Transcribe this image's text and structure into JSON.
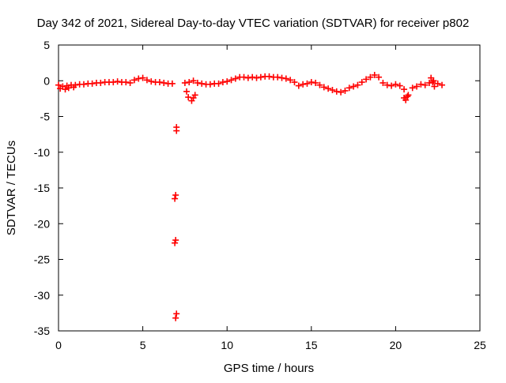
{
  "chart_data": {
    "type": "scatter",
    "title": "Day 342 of 2021, Sidereal Day-to-day VTEC variation (SDTVAR) for receiver p802",
    "xlabel": "GPS time / hours",
    "ylabel": "SDTVAR / TECUs",
    "xlim": [
      0,
      25
    ],
    "ylim": [
      -35,
      5
    ],
    "xticks": [
      0,
      5,
      10,
      15,
      20,
      25
    ],
    "yticks": [
      5,
      0,
      -5,
      -10,
      -15,
      -20,
      -25,
      -30,
      -35
    ],
    "grid": false,
    "legend": "none",
    "marker": "plus",
    "color": "#ff0000",
    "series": [
      {
        "name": "SDTVAR",
        "x": [
          0.0,
          0.25,
          0.5,
          0.75,
          1.0,
          1.25,
          1.5,
          1.75,
          2.0,
          2.25,
          2.5,
          2.75,
          3.0,
          3.25,
          3.5,
          3.75,
          4.0,
          4.25,
          4.5,
          4.75,
          5.0,
          5.25,
          5.5,
          5.75,
          6.0,
          6.25,
          6.5,
          6.75,
          7.5,
          7.75,
          8.0,
          8.25,
          8.5,
          8.75,
          9.0,
          9.25,
          9.5,
          9.75,
          10.0,
          10.25,
          10.5,
          10.75,
          11.0,
          11.25,
          11.5,
          11.75,
          12.0,
          12.25,
          12.5,
          12.75,
          13.0,
          13.25,
          13.5,
          13.75,
          14.0,
          14.25,
          14.5,
          14.75,
          15.0,
          15.25,
          15.5,
          15.75,
          16.0,
          16.25,
          16.5,
          16.75,
          17.0,
          17.25,
          17.5,
          17.75,
          18.0,
          18.25,
          18.5,
          18.75,
          19.0,
          19.25,
          19.5,
          19.75,
          20.0,
          20.25,
          20.5,
          20.75,
          21.0,
          21.25,
          21.5,
          21.75,
          22.0,
          22.25,
          22.5,
          22.75,
          0.1,
          0.4,
          0.6,
          0.9,
          7.0,
          7.0,
          6.95,
          6.9,
          6.95,
          6.9,
          7.0,
          6.95,
          7.6,
          7.7,
          7.9,
          8.0,
          8.1,
          20.5,
          20.6,
          20.7,
          22.1,
          22.2,
          22.3
        ],
        "y": [
          -0.6,
          -0.8,
          -0.7,
          -0.6,
          -0.6,
          -0.5,
          -0.5,
          -0.4,
          -0.4,
          -0.3,
          -0.3,
          -0.2,
          -0.2,
          -0.2,
          -0.1,
          -0.2,
          -0.2,
          -0.3,
          0.1,
          0.3,
          0.4,
          0.1,
          -0.1,
          -0.2,
          -0.2,
          -0.3,
          -0.4,
          -0.4,
          -0.3,
          -0.2,
          0.0,
          -0.3,
          -0.4,
          -0.5,
          -0.5,
          -0.4,
          -0.4,
          -0.2,
          -0.1,
          0.1,
          0.3,
          0.5,
          0.5,
          0.4,
          0.5,
          0.4,
          0.5,
          0.6,
          0.6,
          0.5,
          0.5,
          0.4,
          0.3,
          0.1,
          -0.2,
          -0.7,
          -0.5,
          -0.4,
          -0.2,
          -0.3,
          -0.6,
          -0.9,
          -1.1,
          -1.3,
          -1.5,
          -1.6,
          -1.4,
          -1.0,
          -0.8,
          -0.6,
          -0.2,
          0.2,
          0.5,
          0.8,
          0.5,
          -0.3,
          -0.6,
          -0.7,
          -0.5,
          -0.7,
          -1.2,
          -2.0,
          -1.0,
          -0.8,
          -0.5,
          -0.6,
          -0.3,
          0.0,
          -0.4,
          -0.6,
          -1.1,
          -1.2,
          -1.0,
          -0.9,
          -6.5,
          -7.0,
          -16.0,
          -16.5,
          -22.3,
          -22.7,
          -32.6,
          -33.2,
          -1.5,
          -2.3,
          -2.8,
          -2.4,
          -2.0,
          -2.4,
          -2.7,
          -2.2,
          0.4,
          -0.2,
          -0.8
        ]
      }
    ]
  }
}
